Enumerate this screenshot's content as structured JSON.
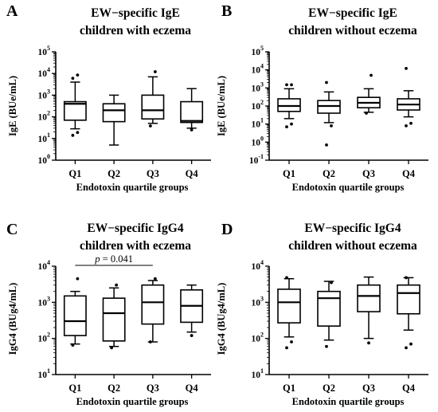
{
  "chart_data": [
    {
      "type": "box",
      "panel": "A",
      "title": [
        "EW−specific IgE",
        "children with eczema"
      ],
      "ylabel": "IgE (BUe/mL)",
      "xlabel": "Endotoxin quartile groups",
      "yscale": "log",
      "ylim": [
        1,
        100000
      ],
      "ytick_labels": [
        {
          "base": "10",
          "exp": "0"
        },
        {
          "base": "10",
          "exp": "1"
        },
        {
          "base": "10",
          "exp": "2"
        },
        {
          "base": "10",
          "exp": "3"
        },
        {
          "base": "10",
          "exp": "4"
        },
        {
          "base": "10",
          "exp": "5"
        }
      ],
      "categories": [
        "Q1",
        "Q2",
        "Q3",
        "Q4"
      ],
      "boxes": [
        {
          "q1": 70,
          "median": 400,
          "q3": 500,
          "whisker_low": 28,
          "whisker_high": 4000,
          "outliers": [
            14,
            19,
            6000,
            8500
          ]
        },
        {
          "q1": 60,
          "median": 200,
          "q3": 400,
          "whisker_low": 5,
          "whisker_high": 1000,
          "outliers": []
        },
        {
          "q1": 80,
          "median": 200,
          "q3": 1000,
          "whisker_low": 50,
          "whisker_high": 7000,
          "outliers": [
            38,
            12000
          ]
        },
        {
          "q1": 55,
          "median": 65,
          "q3": 500,
          "whisker_low": 30,
          "whisker_high": 2000,
          "outliers": [
            25
          ]
        }
      ]
    },
    {
      "type": "box",
      "panel": "B",
      "title": [
        "EW−specific IgE",
        "children without eczema"
      ],
      "ylabel": "IgE (BUe/mL)",
      "xlabel": "Endotoxin quartile groups",
      "yscale": "log",
      "ylim": [
        0.1,
        100000
      ],
      "ytick_labels": [
        {
          "base": "10",
          "exp": "-1"
        },
        {
          "base": "10",
          "exp": "0"
        },
        {
          "base": "10",
          "exp": "1"
        },
        {
          "base": "10",
          "exp": "2"
        },
        {
          "base": "10",
          "exp": "3"
        },
        {
          "base": "10",
          "exp": "4"
        },
        {
          "base": "10",
          "exp": "5"
        }
      ],
      "categories": [
        "Q1",
        "Q2",
        "Q3",
        "Q4"
      ],
      "boxes": [
        {
          "q1": 50,
          "median": 100,
          "q3": 250,
          "whisker_low": 20,
          "whisker_high": 900,
          "outliers": [
            7,
            10,
            1500,
            1500
          ]
        },
        {
          "q1": 40,
          "median": 100,
          "q3": 200,
          "whisker_low": 12,
          "whisker_high": 600,
          "outliers": [
            0.7,
            8,
            2000
          ]
        },
        {
          "q1": 80,
          "median": 150,
          "q3": 300,
          "whisker_low": 45,
          "whisker_high": 900,
          "outliers": [
            40,
            5000
          ]
        },
        {
          "q1": 60,
          "median": 120,
          "q3": 250,
          "whisker_low": 25,
          "whisker_high": 700,
          "outliers": [
            8,
            11,
            12000
          ]
        }
      ]
    },
    {
      "type": "box",
      "panel": "C",
      "title": [
        "EW−specific IgG4",
        "children with eczema"
      ],
      "ylabel": "IgG4 (BUg4/mL)",
      "xlabel": "Endotoxin quartile groups",
      "yscale": "log",
      "ylim": [
        10,
        10000
      ],
      "ytick_labels": [
        {
          "base": "10",
          "exp": "1"
        },
        {
          "base": "10",
          "exp": "2"
        },
        {
          "base": "10",
          "exp": "3"
        },
        {
          "base": "10",
          "exp": "4"
        }
      ],
      "categories": [
        "Q1",
        "Q2",
        "Q3",
        "Q4"
      ],
      "annotation": {
        "label_italic": "p",
        "label_rest": " = 0.041",
        "from": "Q1",
        "to": "Q3"
      },
      "boxes": [
        {
          "q1": 120,
          "median": 300,
          "q3": 1500,
          "whisker_low": 70,
          "whisker_high": 2000,
          "outliers": [
            65,
            4500
          ]
        },
        {
          "q1": 85,
          "median": 500,
          "q3": 1300,
          "whisker_low": 60,
          "whisker_high": 2500,
          "outliers": [
            55,
            3000
          ]
        },
        {
          "q1": 250,
          "median": 1000,
          "q3": 3000,
          "whisker_low": 80,
          "whisker_high": 4000,
          "outliers": [
            80,
            4500
          ]
        },
        {
          "q1": 280,
          "median": 800,
          "q3": 2200,
          "whisker_low": 150,
          "whisker_high": 3000,
          "outliers": [
            120
          ]
        }
      ]
    },
    {
      "type": "box",
      "panel": "D",
      "title": [
        "EW−specific IgG4",
        "children without eczema"
      ],
      "ylabel": "IgG4 (BUg4/mL)",
      "xlabel": "Endotoxin quartile groups",
      "yscale": "log",
      "ylim": [
        10,
        10000
      ],
      "ytick_labels": [
        {
          "base": "10",
          "exp": "1"
        },
        {
          "base": "10",
          "exp": "2"
        },
        {
          "base": "10",
          "exp": "3"
        },
        {
          "base": "10",
          "exp": "4"
        }
      ],
      "categories": [
        "Q1",
        "Q2",
        "Q3",
        "Q4"
      ],
      "boxes": [
        {
          "q1": 270,
          "median": 1000,
          "q3": 2300,
          "whisker_low": 110,
          "whisker_high": 4500,
          "outliers": [
            55,
            80,
            4800
          ]
        },
        {
          "q1": 220,
          "median": 1300,
          "q3": 2000,
          "whisker_low": 90,
          "whisker_high": 3800,
          "outliers": [
            60,
            3500
          ]
        },
        {
          "q1": 550,
          "median": 1500,
          "q3": 3000,
          "whisker_low": 100,
          "whisker_high": 5000,
          "outliers": [
            75
          ]
        },
        {
          "q1": 480,
          "median": 1800,
          "q3": 3000,
          "whisker_low": 170,
          "whisker_high": 4800,
          "outliers": [
            55,
            70,
            4800
          ]
        }
      ]
    }
  ]
}
